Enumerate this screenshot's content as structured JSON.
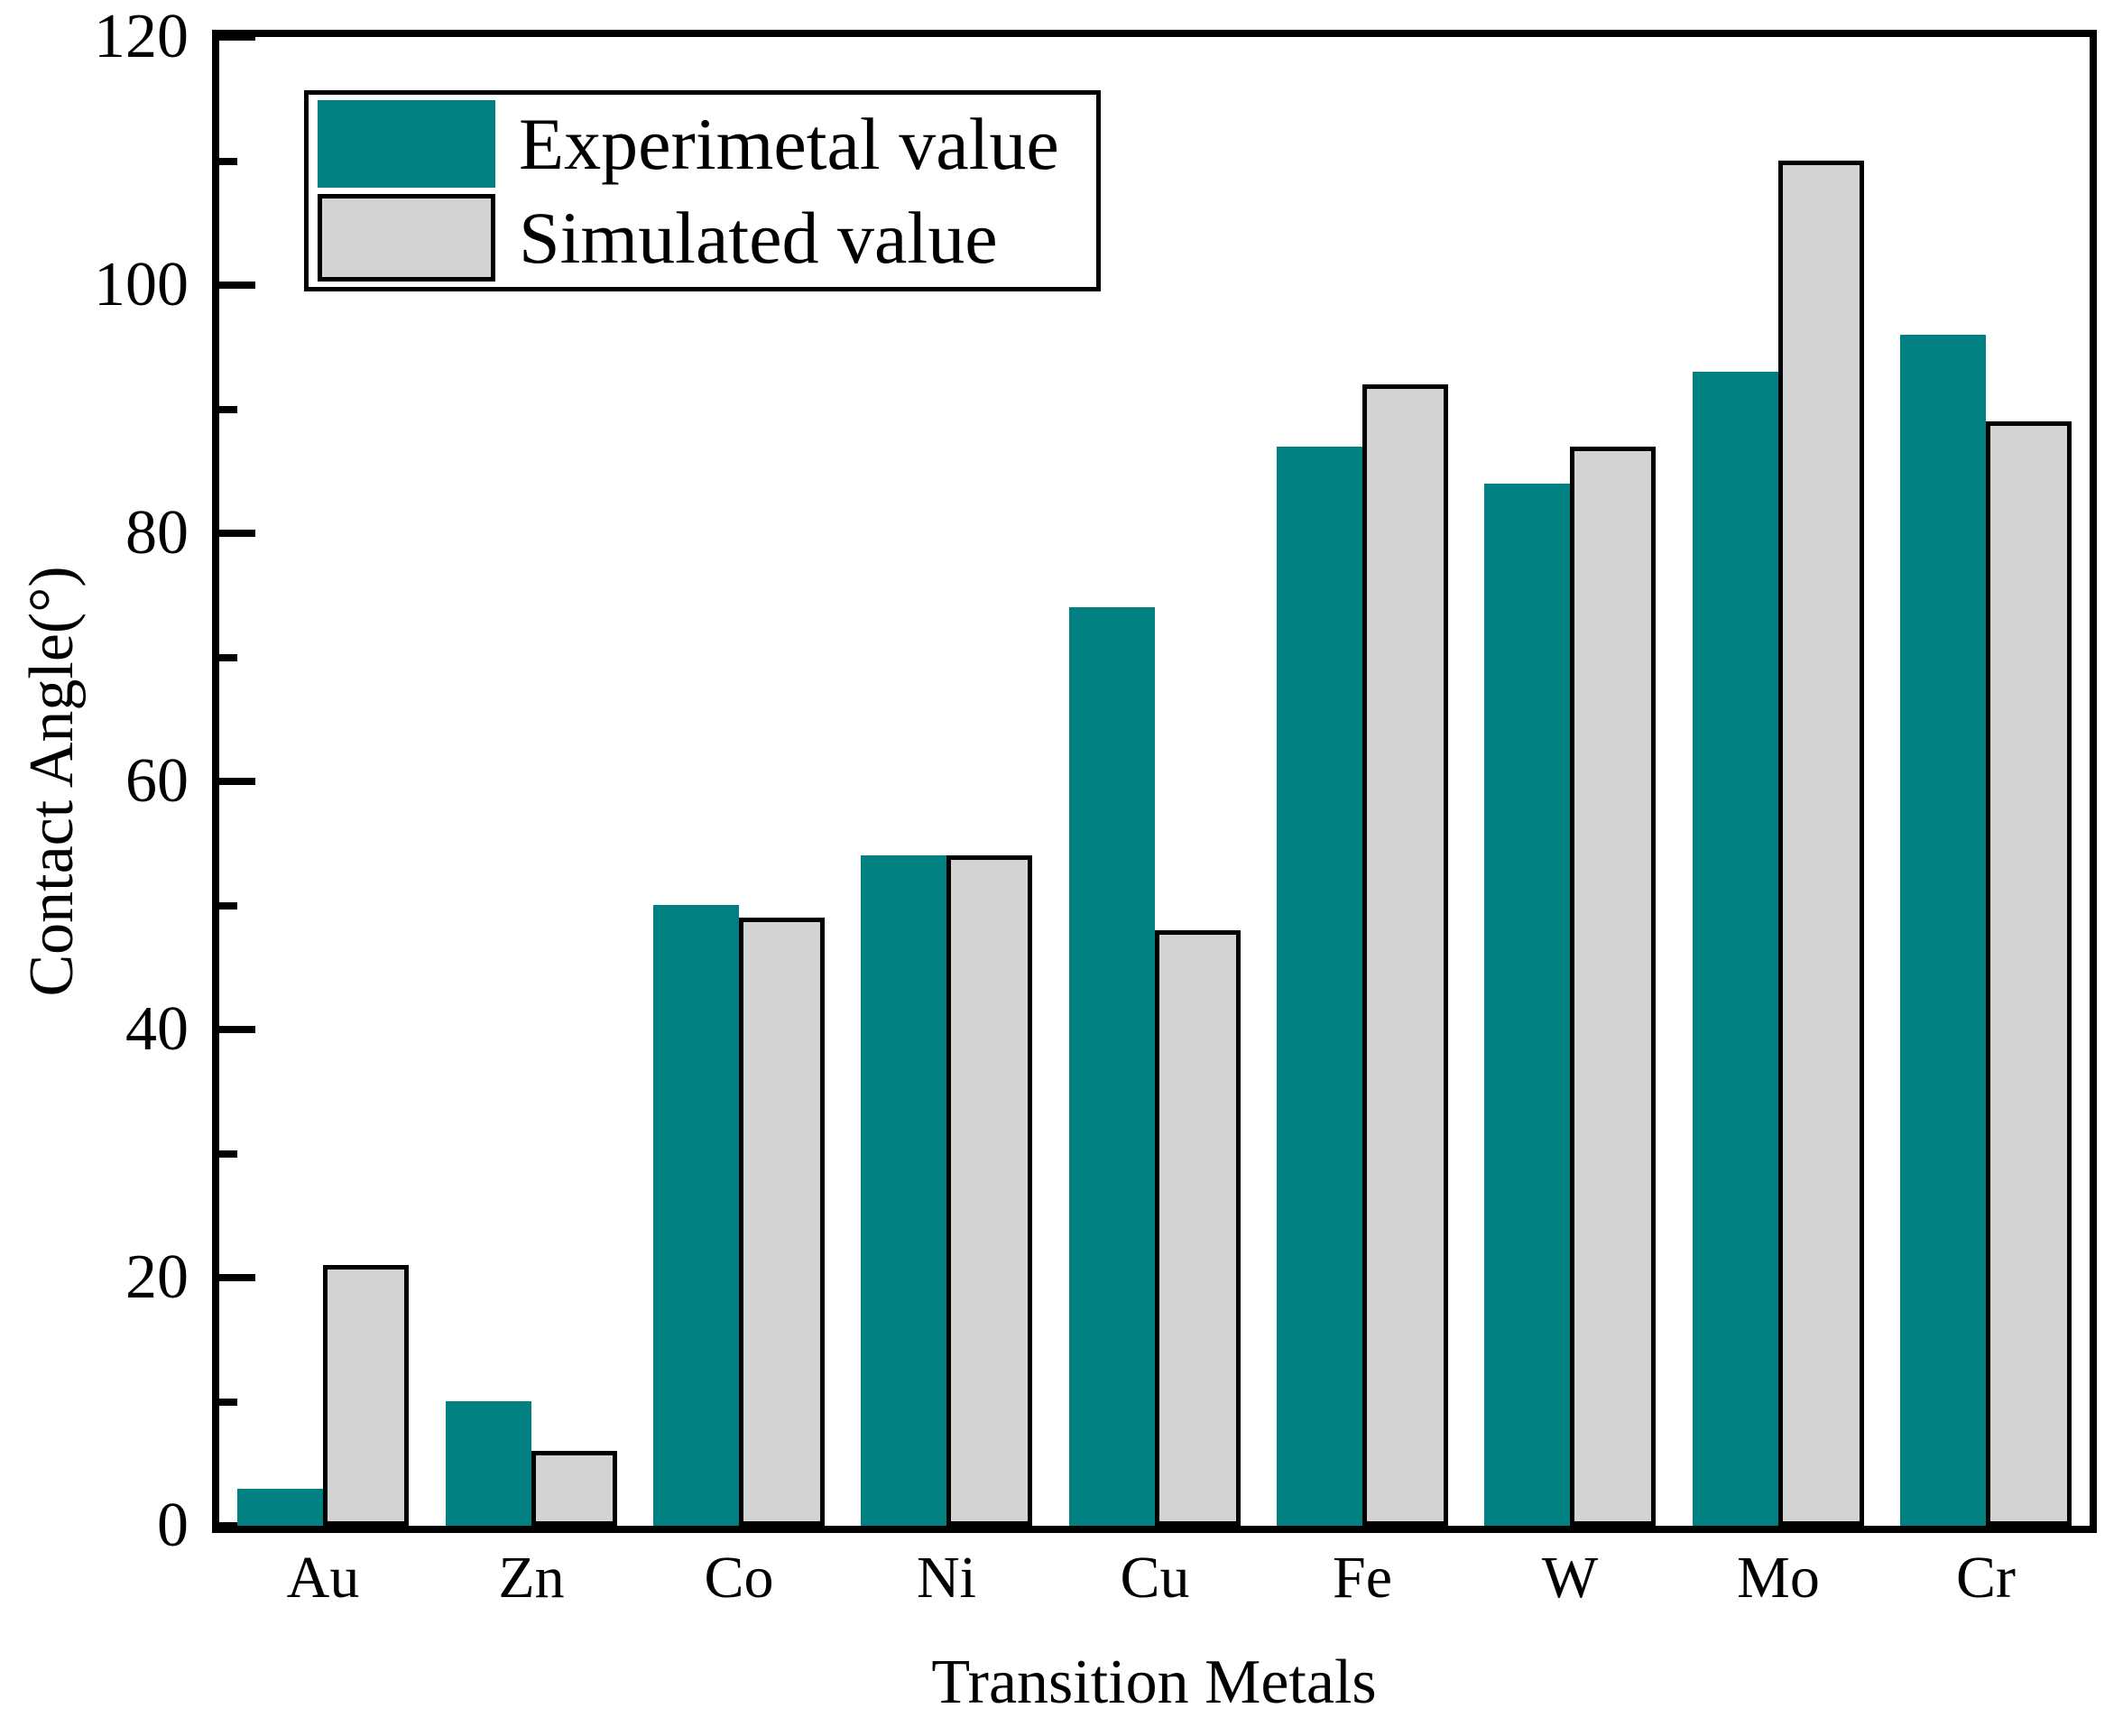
{
  "chart_data": {
    "type": "bar",
    "categories": [
      "Au",
      "Zn",
      "Co",
      "Ni",
      "Cu",
      "Fe",
      "W",
      "Mo",
      "Cr"
    ],
    "series": [
      {
        "name": "Experimetal value",
        "color": "#008080",
        "border_color": "none",
        "values": [
          3,
          10,
          50,
          54,
          74,
          87,
          84,
          93,
          96
        ]
      },
      {
        "name": "Simulated value",
        "color": "#d3d3d3",
        "border_color": "#000000",
        "values": [
          21,
          6,
          49,
          54,
          48,
          92,
          87,
          110,
          89
        ]
      }
    ],
    "xlabel": "Transition Metals",
    "ylabel": "Contact Angle(°)",
    "ylim": [
      0,
      120
    ],
    "yticks": [
      0,
      20,
      40,
      60,
      80,
      100,
      120
    ],
    "y_minor_step": 10,
    "grid": false,
    "legend_position": "top-left",
    "axis_color": "#000000",
    "background_color": "#ffffff"
  }
}
